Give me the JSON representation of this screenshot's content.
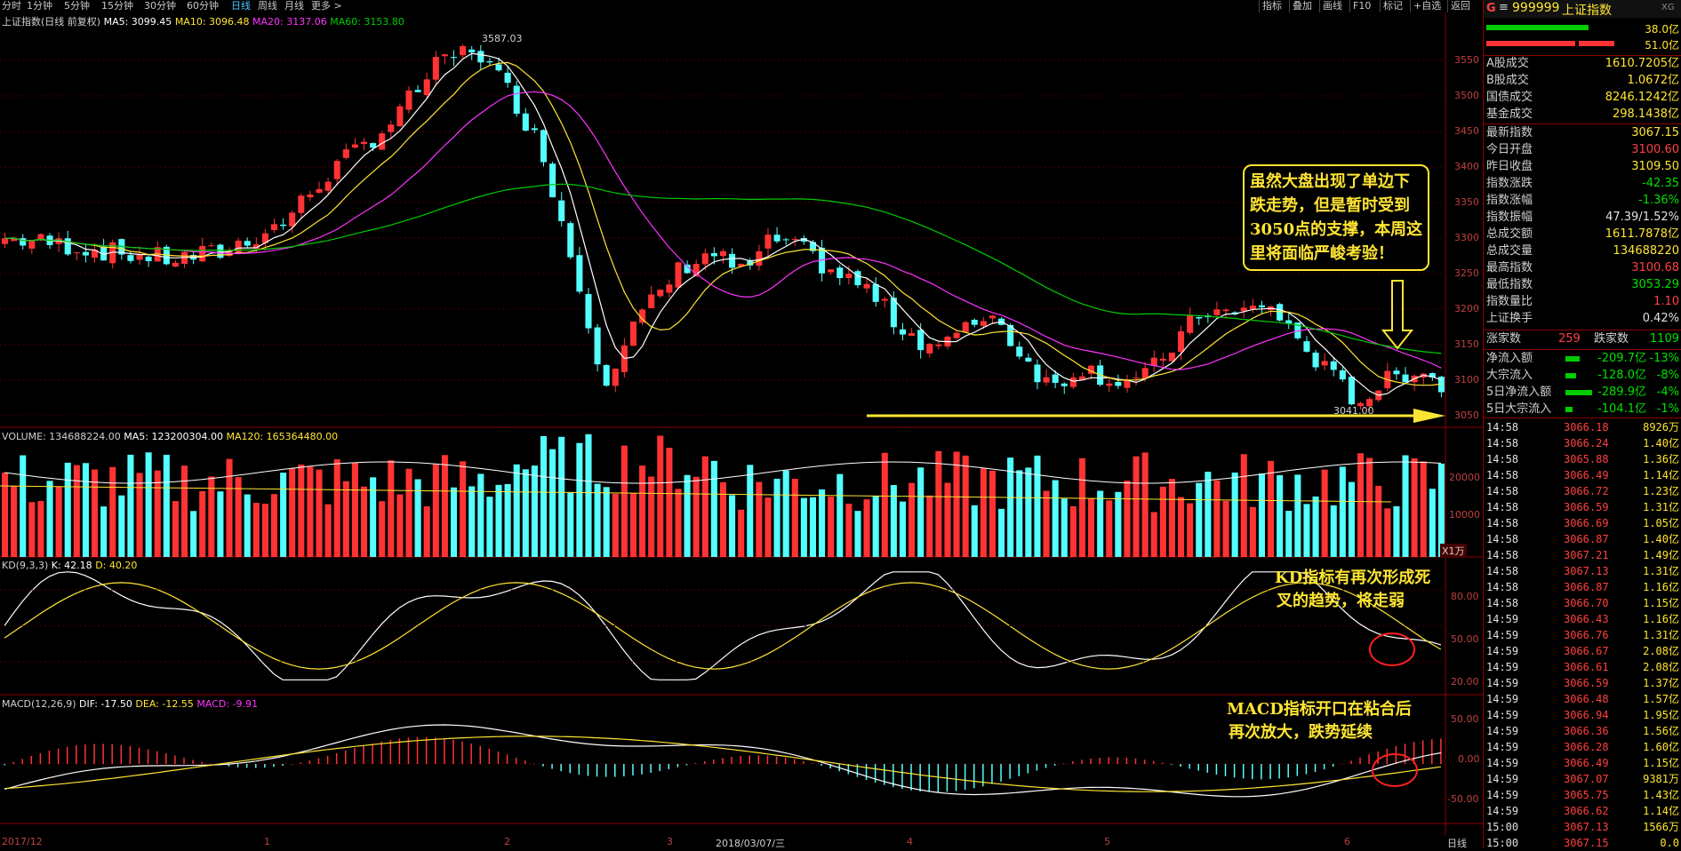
{
  "topbar": {
    "timeframes": [
      "分时",
      "1分钟",
      "5分钟",
      "15分钟",
      "30分钟",
      "60分钟",
      "日线",
      "周线",
      "月线",
      "更多 >"
    ],
    "active": "日线",
    "tools": [
      "指标",
      "叠加",
      "画线",
      "F10",
      "标记",
      "+自选",
      "返回"
    ]
  },
  "main": {
    "info_label": "上证指数(日线 前复权)",
    "ma5": "MA5: 3099.45",
    "ma10": "MA10: 3096.48",
    "ma20": "MA20: 3137.06",
    "ma60": "MA60: 3153.80",
    "high_label": "3587.03",
    "low_label": "3041.00",
    "price_axis": [
      "3550",
      "3500",
      "3450",
      "3400",
      "3350",
      "3300",
      "3250",
      "3200",
      "3150",
      "3100",
      "3050"
    ]
  },
  "volume": {
    "info": "VOLUME: 134688224.00",
    "ma5": "MA5: 123200304.00",
    "ma120": "MA120: 165364480.00",
    "axis": [
      "20000",
      "10000"
    ],
    "unit": "X1万"
  },
  "kd": {
    "info": "KD(9,3,3)",
    "k": "K: 42.18",
    "d": "D: 40.20",
    "axis": [
      "80.00",
      "50.00",
      "20.00"
    ]
  },
  "macd": {
    "info": "MACD(12,26,9)",
    "dif": "DIF: -17.50",
    "dea": "DEA: -12.55",
    "macd": "MACD: -9.91",
    "axis": [
      "50.00",
      "0.00",
      "-50.00"
    ]
  },
  "dates": [
    "2017/12",
    "1",
    "2",
    "3",
    "2018/03/07/三",
    "4",
    "5",
    "6"
  ],
  "period_label": "日线",
  "annotations": {
    "box": [
      "虽然大盘出现了单边下",
      "跌走势，但是暂时受到",
      "3050点的支撑，本周这",
      "里将面临严峻考验！"
    ],
    "kd": [
      "KD指标有再次形成死",
      "叉的趋势，将走弱"
    ],
    "macd": [
      "MACD指标开口在粘合后",
      "再次放大，跌势延续"
    ]
  },
  "panel": {
    "code_icon": "G",
    "menu_icon": "≡",
    "code": "999999",
    "name": "上证指数",
    "tag": "XG",
    "bar_top_value": "38.0亿",
    "bar_bottom_value": "51.0亿",
    "stats1": [
      {
        "k": "A股成交",
        "v": "1610.7205亿"
      },
      {
        "k": "B股成交",
        "v": "1.0672亿"
      },
      {
        "k": "国债成交",
        "v": "8246.1242亿"
      },
      {
        "k": "基金成交",
        "v": "298.1438亿"
      }
    ],
    "stats2": [
      {
        "k": "最新指数",
        "v": "3067.15",
        "c": "#ffe533"
      },
      {
        "k": "今日开盘",
        "v": "3100.60",
        "c": "#ff4040"
      },
      {
        "k": "昨日收盘",
        "v": "3109.50",
        "c": "#ffe533"
      },
      {
        "k": "指数涨跌",
        "v": "-42.35",
        "c": "#00e000"
      },
      {
        "k": "指数涨幅",
        "v": "-1.36%",
        "c": "#00e000"
      },
      {
        "k": "指数振幅",
        "v": "47.39/1.52%",
        "c": "#e0e0e0"
      },
      {
        "k": "总成交额",
        "v": "1611.7878亿",
        "c": "#ffe533"
      },
      {
        "k": "总成交量",
        "v": "134688220",
        "c": "#ffe533"
      },
      {
        "k": "最高指数",
        "v": "3100.68",
        "c": "#ff4040"
      },
      {
        "k": "最低指数",
        "v": "3053.29",
        "c": "#00e000"
      },
      {
        "k": "指数量比",
        "v": "1.10",
        "c": "#ff4040"
      },
      {
        "k": "上证换手",
        "v": "0.42%",
        "c": "#e0e0e0"
      }
    ],
    "up_label": "涨家数",
    "up_value": "259",
    "down_label": "跌家数",
    "down_value": "1109",
    "flows": [
      {
        "k": "净流入额",
        "v": "-209.7亿",
        "p": "-13%"
      },
      {
        "k": "大宗流入",
        "v": "-128.0亿",
        "p": "-8%"
      },
      {
        "k": "5日净流入额",
        "v": "-289.9亿",
        "p": "-4%"
      },
      {
        "k": "5日大宗流入",
        "v": "-104.1亿",
        "p": "-1%"
      }
    ],
    "ticks": [
      {
        "t": "14:58",
        "p": "3066.18",
        "v": "8926万"
      },
      {
        "t": "14:58",
        "p": "3066.24",
        "v": "1.40亿"
      },
      {
        "t": "14:58",
        "p": "3065.88",
        "v": "1.36亿"
      },
      {
        "t": "14:58",
        "p": "3066.49",
        "v": "1.14亿"
      },
      {
        "t": "14:58",
        "p": "3066.72",
        "v": "1.23亿"
      },
      {
        "t": "14:58",
        "p": "3066.59",
        "v": "1.31亿"
      },
      {
        "t": "14:58",
        "p": "3066.69",
        "v": "1.05亿"
      },
      {
        "t": "14:58",
        "p": "3066.87",
        "v": "1.40亿"
      },
      {
        "t": "14:58",
        "p": "3067.21",
        "v": "1.49亿"
      },
      {
        "t": "14:58",
        "p": "3067.13",
        "v": "1.31亿"
      },
      {
        "t": "14:58",
        "p": "3066.87",
        "v": "1.16亿"
      },
      {
        "t": "14:58",
        "p": "3066.70",
        "v": "1.15亿"
      },
      {
        "t": "14:59",
        "p": "3066.43",
        "v": "1.16亿"
      },
      {
        "t": "14:59",
        "p": "3066.76",
        "v": "1.31亿"
      },
      {
        "t": "14:59",
        "p": "3066.67",
        "v": "2.08亿"
      },
      {
        "t": "14:59",
        "p": "3066.61",
        "v": "2.08亿"
      },
      {
        "t": "14:59",
        "p": "3066.59",
        "v": "1.37亿"
      },
      {
        "t": "14:59",
        "p": "3066.48",
        "v": "1.57亿"
      },
      {
        "t": "14:59",
        "p": "3066.94",
        "v": "1.95亿"
      },
      {
        "t": "14:59",
        "p": "3066.36",
        "v": "1.56亿"
      },
      {
        "t": "14:59",
        "p": "3066.28",
        "v": "1.60亿"
      },
      {
        "t": "14:59",
        "p": "3066.49",
        "v": "1.15亿"
      },
      {
        "t": "14:59",
        "p": "3067.07",
        "v": "9381万"
      },
      {
        "t": "14:59",
        "p": "3065.75",
        "v": "1.43亿"
      },
      {
        "t": "14:59",
        "p": "3066.62",
        "v": "1.14亿"
      },
      {
        "t": "15:00",
        "p": "3067.13",
        "v": "1566万"
      },
      {
        "t": "15:00",
        "p": "3067.15",
        "v": "0.0"
      }
    ]
  },
  "colors": {
    "up": "#ff3333",
    "down": "#54ffff",
    "ma5": "#ffffff",
    "ma10": "#ffe533",
    "ma20": "#ff33ff",
    "ma60": "#00cc00",
    "annotation": "#ffe533"
  }
}
